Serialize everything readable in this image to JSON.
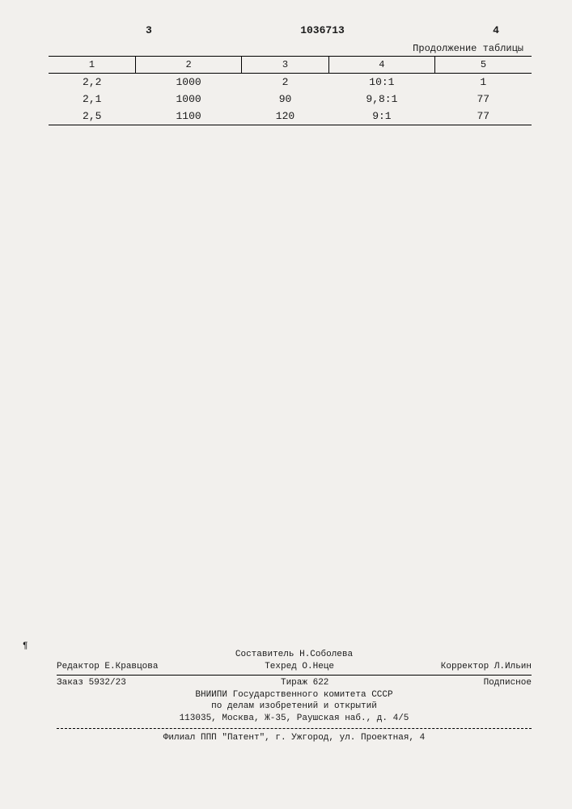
{
  "header": {
    "left_num": "3",
    "doc_number": "1036713",
    "right_num": "4"
  },
  "table": {
    "caption": "Продолжение таблицы",
    "columns": [
      "1",
      "2",
      "3",
      "4",
      "5"
    ],
    "col_widths": [
      "18%",
      "22%",
      "18%",
      "22%",
      "20%"
    ],
    "rows": [
      [
        "2,2",
        "1000",
        "2",
        "10:1",
        "1"
      ],
      [
        "2,1",
        "1000",
        "90",
        "9,8:1",
        "77"
      ],
      [
        "2,5",
        "1100",
        "120",
        "9:1",
        "77"
      ]
    ],
    "border_color": "#000000",
    "font_size_header": 12,
    "font_size_body": 13
  },
  "colophon": {
    "line1_center": "Составитель Н.Соболева",
    "line2_left": "Редактор Е.Кравцова",
    "line2_center": "Техред  О.Неце",
    "line2_right": "Корректор Л.Ильин",
    "line3_left": "Заказ 5932/23",
    "line3_center": "Тираж 622",
    "line3_right": "Подписное",
    "org1": "ВНИИПИ Государственного комитета СССР",
    "org2": "по делам изобретений и открытий",
    "org3": "113035, Москва, Ж-35, Раушская наб., д. 4/5",
    "printer": "Филиал ППП \"Патент\", г. Ужгород, ул. Проектная, 4"
  },
  "margin_mark": "¶"
}
